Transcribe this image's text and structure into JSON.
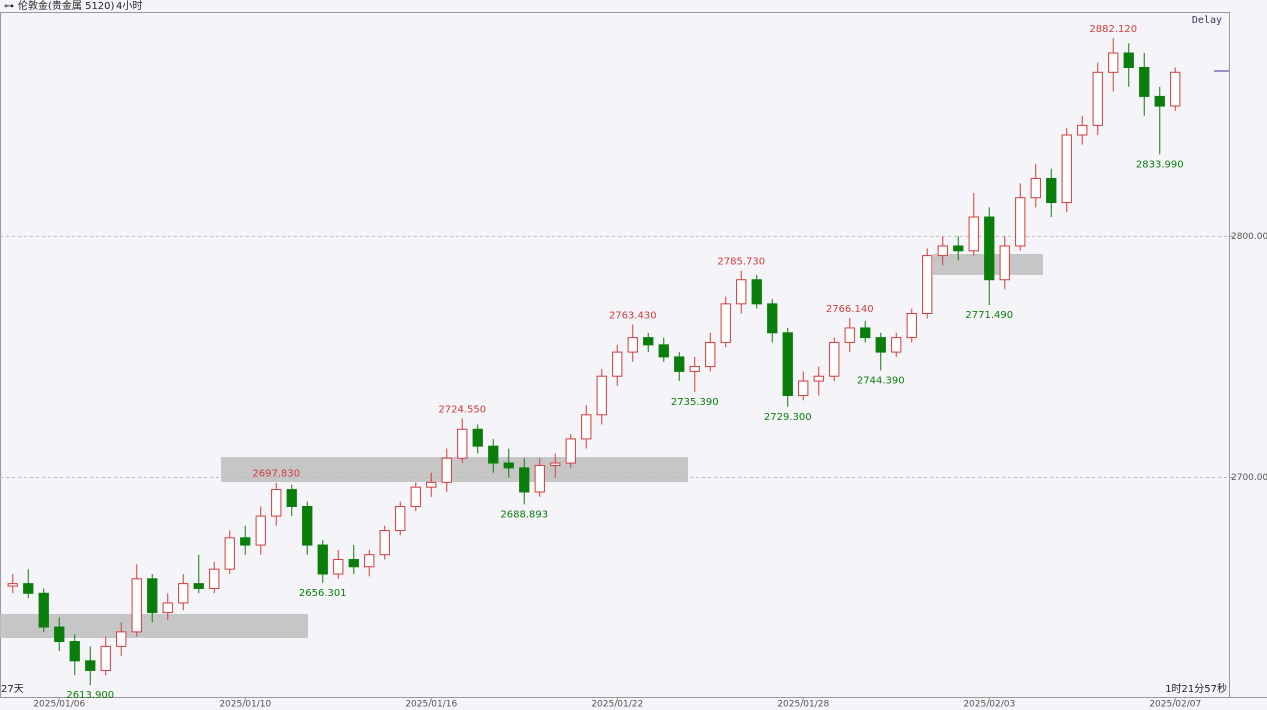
{
  "chart_data": {
    "type": "candlestick",
    "title": "伦敦金(贵金属 5120)",
    "period": "4小时",
    "status": "Delay",
    "bottom_left": "27天",
    "bottom_right": "1时21分57秒",
    "up_color": "#d23c3c",
    "down_color": "#0b7d0b",
    "ylim": [
      2609,
      2893
    ],
    "yticks": [
      {
        "value": 2700,
        "label": "2700.000"
      },
      {
        "value": 2800,
        "label": "2800.000"
      }
    ],
    "grid": true,
    "categories": [
      null,
      null,
      null,
      "2025/01/06",
      null,
      null,
      null,
      null,
      null,
      null,
      null,
      null,
      null,
      null,
      null,
      "2025/01/10",
      null,
      null,
      null,
      null,
      null,
      null,
      null,
      null,
      null,
      null,
      null,
      "2025/01/16",
      null,
      null,
      null,
      null,
      null,
      null,
      null,
      null,
      null,
      null,
      null,
      "2025/01/22",
      null,
      null,
      null,
      null,
      null,
      null,
      null,
      null,
      null,
      null,
      null,
      "2025/01/28",
      null,
      null,
      null,
      null,
      null,
      null,
      null,
      null,
      null,
      null,
      null,
      "2025/02/03",
      null,
      null,
      null,
      null,
      null,
      null,
      null,
      null,
      null,
      null,
      null,
      "2025/02/07"
    ],
    "ohlc": [
      [
        2655,
        2660,
        2652,
        2656
      ],
      [
        2656,
        2662,
        2650,
        2652
      ],
      [
        2652,
        2654,
        2636,
        2638
      ],
      [
        2638,
        2642,
        2628,
        2632
      ],
      [
        2632,
        2635,
        2618,
        2624
      ],
      [
        2624,
        2630,
        2613.9,
        2620
      ],
      [
        2620,
        2634,
        2618,
        2630
      ],
      [
        2630,
        2640,
        2626,
        2636
      ],
      [
        2636,
        2664,
        2634,
        2658
      ],
      [
        2658,
        2660,
        2640,
        2644
      ],
      [
        2644,
        2652,
        2641,
        2648
      ],
      [
        2648,
        2660,
        2645,
        2656
      ],
      [
        2656,
        2668,
        2652,
        2654
      ],
      [
        2654,
        2665,
        2652,
        2662
      ],
      [
        2662,
        2678,
        2660,
        2675
      ],
      [
        2675,
        2680,
        2668,
        2672
      ],
      [
        2672,
        2688,
        2668,
        2684
      ],
      [
        2684,
        2697.83,
        2680,
        2695
      ],
      [
        2695,
        2697,
        2684,
        2688
      ],
      [
        2688,
        2690,
        2668,
        2672
      ],
      [
        2672,
        2674,
        2656.301,
        2660
      ],
      [
        2660,
        2670,
        2658,
        2666
      ],
      [
        2666,
        2672,
        2660,
        2663
      ],
      [
        2663,
        2670,
        2659,
        2668
      ],
      [
        2668,
        2680,
        2666,
        2678
      ],
      [
        2678,
        2690,
        2676,
        2688
      ],
      [
        2688,
        2698,
        2686,
        2696
      ],
      [
        2696,
        2702,
        2692,
        2698
      ],
      [
        2698,
        2712,
        2694,
        2708
      ],
      [
        2708,
        2724.55,
        2706,
        2720
      ],
      [
        2720,
        2722,
        2710,
        2713
      ],
      [
        2713,
        2716,
        2702,
        2706
      ],
      [
        2706,
        2712,
        2700,
        2704
      ],
      [
        2704,
        2708,
        2688.893,
        2694
      ],
      [
        2694,
        2708,
        2692,
        2705
      ],
      [
        2705,
        2710,
        2700,
        2706
      ],
      [
        2706,
        2718,
        2704,
        2716
      ],
      [
        2716,
        2730,
        2712,
        2726
      ],
      [
        2726,
        2745,
        2722,
        2742
      ],
      [
        2742,
        2755,
        2738,
        2752
      ],
      [
        2752,
        2763.43,
        2748,
        2758
      ],
      [
        2758,
        2760,
        2752,
        2755
      ],
      [
        2755,
        2758,
        2748,
        2750
      ],
      [
        2750,
        2752,
        2740,
        2744
      ],
      [
        2744,
        2750,
        2735.39,
        2746
      ],
      [
        2746,
        2760,
        2744,
        2756
      ],
      [
        2756,
        2775,
        2754,
        2772
      ],
      [
        2772,
        2785.73,
        2768,
        2782
      ],
      [
        2782,
        2784,
        2770,
        2772
      ],
      [
        2772,
        2774,
        2756,
        2760
      ],
      [
        2760,
        2762,
        2729.3,
        2734
      ],
      [
        2734,
        2744,
        2732,
        2740
      ],
      [
        2740,
        2746,
        2734,
        2742
      ],
      [
        2742,
        2758,
        2740,
        2756
      ],
      [
        2756,
        2766.14,
        2752,
        2762
      ],
      [
        2762,
        2765,
        2756,
        2758
      ],
      [
        2758,
        2760,
        2744.39,
        2752
      ],
      [
        2752,
        2760,
        2750,
        2758
      ],
      [
        2758,
        2770,
        2756,
        2768
      ],
      [
        2768,
        2795,
        2766,
        2792
      ],
      [
        2792,
        2800,
        2788,
        2796
      ],
      [
        2796,
        2800,
        2790,
        2794
      ],
      [
        2794,
        2818,
        2792,
        2808
      ],
      [
        2808,
        2812,
        2771.49,
        2782
      ],
      [
        2782,
        2800,
        2778,
        2796
      ],
      [
        2796,
        2822,
        2794,
        2816
      ],
      [
        2816,
        2830,
        2812,
        2824
      ],
      [
        2824,
        2828,
        2808,
        2814
      ],
      [
        2814,
        2845,
        2810,
        2842
      ],
      [
        2842,
        2850,
        2838,
        2846
      ],
      [
        2846,
        2872,
        2842,
        2868
      ],
      [
        2868,
        2882.12,
        2860,
        2876
      ],
      [
        2876,
        2880,
        2862,
        2870
      ],
      [
        2870,
        2876,
        2850,
        2858
      ],
      [
        2858,
        2862,
        2833.99,
        2854
      ],
      [
        2854,
        2870,
        2852,
        2868
      ]
    ],
    "high_labels": [
      null,
      null,
      null,
      null,
      null,
      null,
      null,
      null,
      null,
      null,
      null,
      null,
      null,
      null,
      null,
      null,
      null,
      "2697.830",
      null,
      null,
      null,
      null,
      null,
      null,
      null,
      null,
      null,
      null,
      null,
      "2724.550",
      null,
      null,
      null,
      null,
      null,
      null,
      null,
      null,
      null,
      null,
      "2763.430",
      null,
      null,
      null,
      null,
      null,
      null,
      "2785.730",
      null,
      null,
      null,
      null,
      null,
      null,
      "2766.140",
      null,
      null,
      null,
      null,
      null,
      null,
      null,
      null,
      null,
      null,
      null,
      null,
      null,
      null,
      null,
      null,
      "2882.120",
      null,
      null,
      null,
      null
    ],
    "low_labels": [
      null,
      null,
      null,
      null,
      null,
      "2613.900",
      null,
      null,
      null,
      null,
      null,
      null,
      null,
      null,
      null,
      null,
      null,
      null,
      null,
      null,
      "2656.301",
      null,
      null,
      null,
      null,
      null,
      null,
      null,
      null,
      null,
      null,
      null,
      null,
      "2688.893",
      null,
      null,
      null,
      null,
      null,
      null,
      null,
      null,
      null,
      null,
      "2735.390",
      null,
      null,
      null,
      null,
      null,
      "2729.300",
      null,
      null,
      null,
      null,
      null,
      "2744.390",
      null,
      null,
      null,
      null,
      null,
      null,
      "2771.490",
      null,
      null,
      null,
      null,
      null,
      null,
      null,
      null,
      null,
      null,
      "2833.990",
      null
    ]
  }
}
